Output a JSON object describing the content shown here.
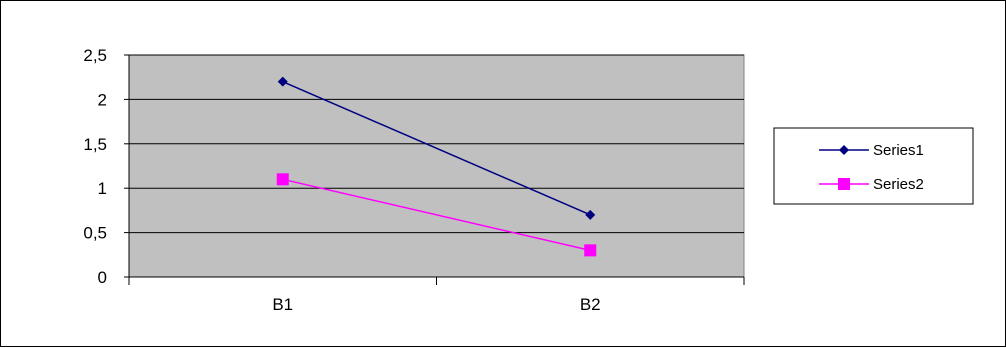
{
  "chart_data": {
    "type": "line",
    "categories": [
      "B1",
      "B2"
    ],
    "series": [
      {
        "name": "Series1",
        "values": [
          2.2,
          0.7
        ],
        "color": "#000080",
        "marker": "diamond"
      },
      {
        "name": "Series2",
        "values": [
          1.1,
          0.3
        ],
        "color": "#FF00FF",
        "marker": "square"
      }
    ],
    "ylim": [
      0,
      2.5
    ],
    "y_ticks": [
      "0",
      "0,5",
      "1",
      "1,5",
      "2",
      "2,5"
    ],
    "grid": true,
    "plot_background": "#C0C0C0",
    "legend_position": "right"
  }
}
